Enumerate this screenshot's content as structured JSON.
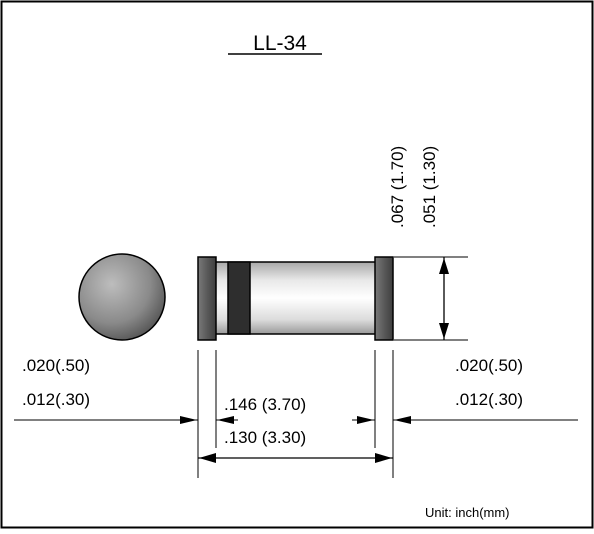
{
  "title": "LL-34",
  "unit_note": "Unit:  inch(mm)",
  "dims": {
    "diameter_max": ".067 (1.70)",
    "diameter_min": ".051 (1.30)",
    "left_cap_max": ".020(.50)",
    "left_cap_min": ".012(.30)",
    "right_cap_max": ".020(.50)",
    "right_cap_min": ".012(.30)",
    "body_length_max": ".146 (3.70)",
    "body_length_min": ".130 (3.30)"
  },
  "colors": {
    "line": "#000000",
    "background": "#ffffff",
    "end_cap": "#555555",
    "cathode_band": "#2e2e2e",
    "body_light": "#f4f4f4",
    "body_shade": "#9a9a9a"
  }
}
